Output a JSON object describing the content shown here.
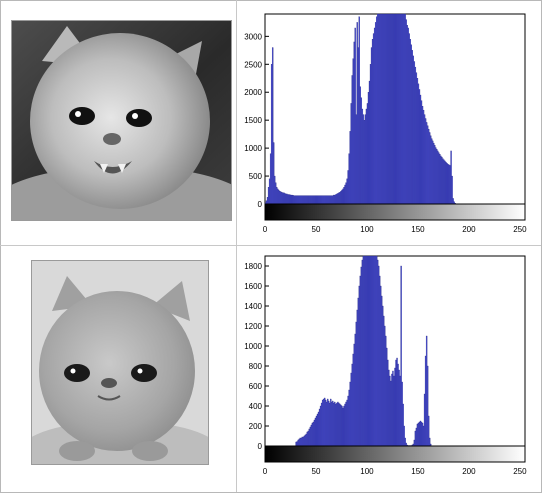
{
  "panels": [
    {
      "photo_icon": "kitten-photo-icon"
    },
    {
      "photo_icon": "persian-kitten-photo-icon"
    }
  ],
  "colors": {
    "bar": "#4a4fd8",
    "bar_edge": "#1d1f7a",
    "axes": "#000000",
    "background": "#ffffff"
  },
  "chart_data": [
    {
      "type": "bar",
      "title": "",
      "xlabel": "",
      "ylabel": "",
      "xlim": [
        0,
        255
      ],
      "ylim": [
        0,
        3400
      ],
      "xticks": [
        0,
        50,
        100,
        150,
        200,
        250
      ],
      "yticks": [
        0,
        500,
        1000,
        1500,
        2000,
        2500,
        3000
      ],
      "colorbar": "grayscale 0-255",
      "x_start": 0,
      "values": [
        20,
        60,
        120,
        300,
        450,
        900,
        2500,
        2800,
        1100,
        500,
        380,
        300,
        270,
        250,
        230,
        220,
        210,
        200,
        200,
        190,
        180,
        180,
        170,
        170,
        165,
        160,
        160,
        155,
        150,
        150,
        150,
        150,
        150,
        150,
        150,
        150,
        150,
        150,
        150,
        150,
        150,
        150,
        150,
        150,
        150,
        150,
        150,
        150,
        150,
        150,
        150,
        150,
        150,
        150,
        150,
        150,
        150,
        150,
        150,
        150,
        150,
        150,
        150,
        150,
        150,
        150,
        150,
        160,
        160,
        170,
        180,
        190,
        200,
        210,
        230,
        250,
        270,
        300,
        340,
        380,
        450,
        600,
        900,
        1300,
        1800,
        2300,
        2600,
        2900,
        3150,
        1600,
        3250,
        2800,
        3350,
        2100,
        1900,
        1700,
        1600,
        1500,
        1600,
        1700,
        1800,
        2000,
        2200,
        2500,
        2800,
        2950,
        3050,
        3150,
        3250,
        3350,
        3450,
        3450,
        3450,
        3450,
        3450,
        3450,
        3450,
        3450,
        3450,
        3450,
        3450,
        3450,
        3450,
        3450,
        3450,
        3450,
        3450,
        3450,
        3450,
        3450,
        3450,
        3450,
        3450,
        3450,
        3450,
        3450,
        3450,
        3400,
        3300,
        3200,
        3150,
        3050,
        2950,
        2850,
        2750,
        2650,
        2550,
        2450,
        2350,
        2250,
        2150,
        2050,
        1950,
        1850,
        1750,
        1680,
        1600,
        1530,
        1460,
        1400,
        1340,
        1280,
        1220,
        1170,
        1130,
        1090,
        1050,
        1010,
        980,
        950,
        920,
        890,
        860,
        840,
        810,
        790,
        770,
        750,
        730,
        710,
        700,
        690,
        950,
        500,
        100,
        40,
        15
      ]
    },
    {
      "type": "bar",
      "title": "",
      "xlabel": "",
      "ylabel": "",
      "xlim": [
        0,
        255
      ],
      "ylim": [
        0,
        1900
      ],
      "xticks": [
        0,
        50,
        100,
        150,
        200,
        250
      ],
      "yticks": [
        0,
        200,
        400,
        600,
        800,
        1000,
        1200,
        1400,
        1600,
        1800
      ],
      "colorbar": "grayscale 0-255",
      "x_start": 30,
      "values": [
        40,
        45,
        60,
        70,
        80,
        80,
        90,
        90,
        100,
        110,
        120,
        140,
        150,
        170,
        190,
        210,
        230,
        240,
        260,
        280,
        300,
        320,
        340,
        370,
        400,
        430,
        460,
        470,
        480,
        460,
        440,
        470,
        450,
        430,
        470,
        440,
        450,
        430,
        440,
        420,
        430,
        440,
        430,
        420,
        410,
        400,
        380,
        400,
        420,
        440,
        460,
        500,
        560,
        640,
        730,
        820,
        920,
        1020,
        1120,
        1240,
        1360,
        1480,
        1600,
        1700,
        1790,
        1860,
        1900,
        1900,
        1900,
        1900,
        1900,
        1900,
        1900,
        1900,
        1900,
        1900,
        1900,
        1900,
        1900,
        1900,
        1860,
        1800,
        1700,
        1600,
        1500,
        1400,
        1300,
        1200,
        1100,
        980,
        860,
        760,
        700,
        650,
        720,
        750,
        700,
        780,
        860,
        880,
        820,
        760,
        700,
        1800,
        640,
        420,
        200,
        80,
        30,
        10,
        5,
        5,
        5,
        5,
        10,
        20,
        60,
        150,
        180,
        220,
        230,
        240,
        250,
        240,
        230,
        200,
        520,
        900,
        1100,
        800,
        300,
        80,
        20
      ]
    }
  ]
}
